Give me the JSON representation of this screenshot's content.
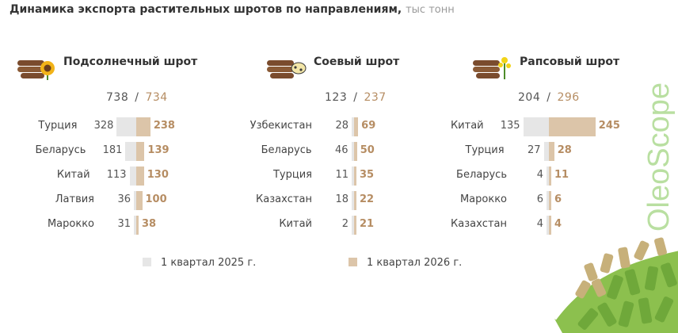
{
  "title": "Динамика экспорта растительных шротов по направлениям,",
  "unit": "тыс тонн",
  "brand": "OleoScope",
  "legend": [
    {
      "label": "1 квартал 2025 г.",
      "color": "#e6e6e6"
    },
    {
      "label": "1 квартал 2026 г.",
      "color": "#dcc5a9"
    }
  ],
  "colors": {
    "q2025": "#e6e6e6",
    "q2026": "#dcc5a9",
    "q2026_text": "#b68d63"
  },
  "chart_data": [
    {
      "type": "bar",
      "title": "Подсолнечный шрот",
      "icon": "logs-sunflower-icon",
      "totals": {
        "q2025": "738",
        "q2026": "734"
      },
      "categories": [
        "Турция",
        "Беларусь",
        "Китай",
        "Латвия",
        "Марокко"
      ],
      "series": [
        {
          "name": "1 квартал 2025 г.",
          "values": [
            328,
            181,
            113,
            36,
            31
          ]
        },
        {
          "name": "1 квартал 2026 г.",
          "values": [
            238,
            139,
            130,
            100,
            38
          ]
        }
      ]
    },
    {
      "type": "bar",
      "title": "Соевый шрот",
      "icon": "logs-soybean-icon",
      "totals": {
        "q2025": "123",
        "q2026": "237"
      },
      "categories": [
        "Узбекистан",
        "Беларусь",
        "Турция",
        "Казахстан",
        "Китай"
      ],
      "series": [
        {
          "name": "1 квартал 2025 г.",
          "values": [
            28,
            46,
            11,
            18,
            2
          ]
        },
        {
          "name": "1 квартал 2026 г.",
          "values": [
            69,
            50,
            35,
            22,
            21
          ]
        }
      ]
    },
    {
      "type": "bar",
      "title": "Рапсовый шрот",
      "icon": "logs-rapeseed-icon",
      "totals": {
        "q2025": "204",
        "q2026": "296"
      },
      "categories": [
        "Китай",
        "Турция",
        "Беларусь",
        "Марокко",
        "Казахстан"
      ],
      "series": [
        {
          "name": "1 квартал 2025 г.",
          "values": [
            135,
            27,
            4,
            6,
            4
          ]
        },
        {
          "name": "1 квартал 2026 г.",
          "values": [
            245,
            28,
            11,
            6,
            4
          ]
        }
      ]
    }
  ]
}
